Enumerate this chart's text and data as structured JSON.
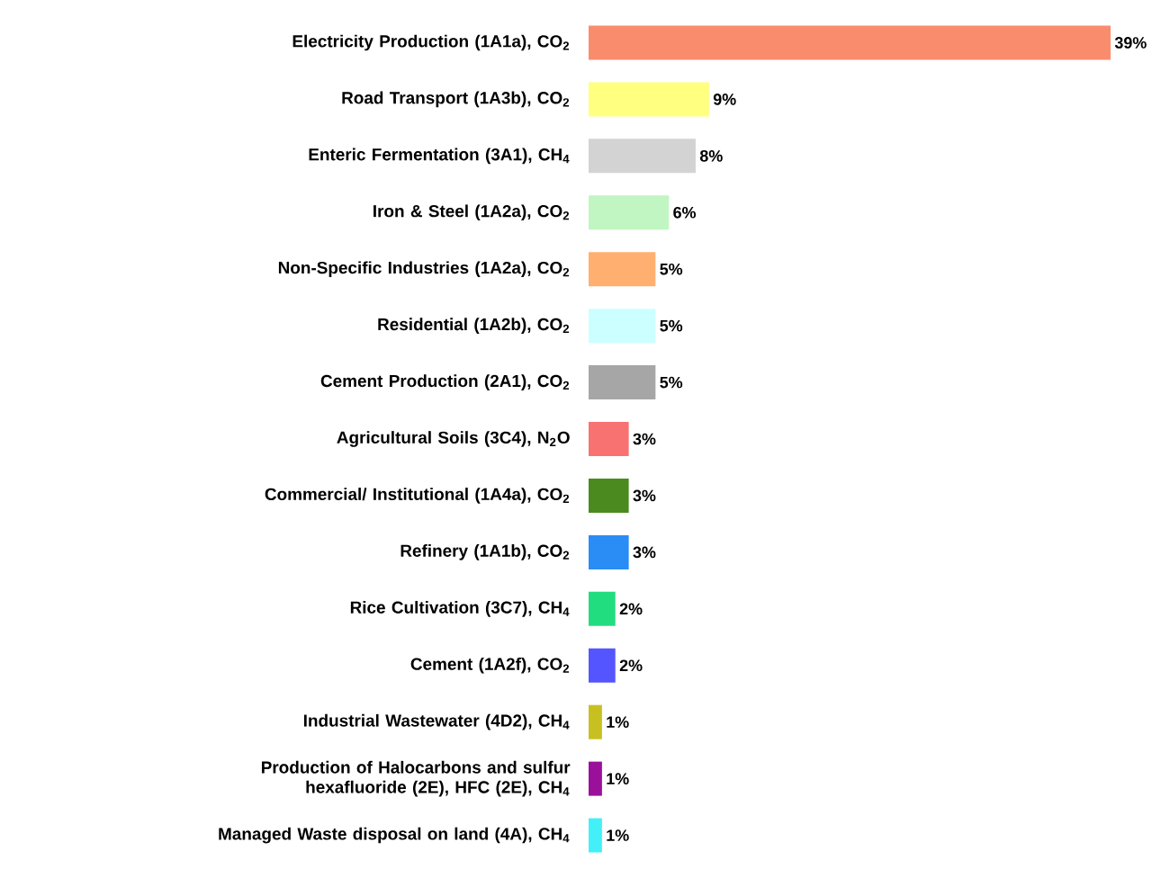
{
  "chart_data": {
    "type": "bar",
    "orientation": "horizontal",
    "categories": [
      "Electricity Production (1A1a), CO$_{2}$",
      "Road Transport (1A3b), CO$_{2}$",
      "Enteric  Fermentation (3A1), CH$_{4}$",
      "Iron & Steel (1A2a), CO$_{2}$",
      "Non-Specific Industries (1A2a), CO$_{2}$",
      "Residential (1A2b), CO$_{2}$",
      "Cement Production (2A1), CO$_{2}$",
      "Agricultural Soils (3C4), N$_{2}$O",
      "Commercial/ Institutional (1A4a), CO$_{2}$",
      "Refinery (1A1b), CO$_{2}$",
      "Rice Cultivation (3C7), CH$_{4}$",
      "Cement (1A2f), CO$_{2}$",
      "Industrial Wastewater (4D2), CH$_{4}$",
      "Production of Halocarbons and sulfur hexafluoride (2E), HFC (2E), CH$_{4}$",
      "Managed Waste disposal on land (4A), CH$_{4}$"
    ],
    "values": [
      39,
      9,
      8,
      6,
      5,
      5,
      5,
      3,
      3,
      3,
      2,
      2,
      1,
      1,
      1
    ],
    "value_labels": [
      "39%",
      "9%",
      "8%",
      "6%",
      "5%",
      "5%",
      "5%",
      "3%",
      "3%",
      "3%",
      "2%",
      "2%",
      "1%",
      "1%",
      "1%"
    ],
    "colors": [
      "#fa8c6e",
      "#ffff80",
      "#d3d3d3",
      "#c1f5c1",
      "#ffb070",
      "#ccffff",
      "#a6a6a6",
      "#f87272",
      "#4b8a1e",
      "#2a8cf5",
      "#22dd80",
      "#5555ff",
      "#c8c020",
      "#9b109b",
      "#44f0f8"
    ],
    "xlim": [
      0,
      39
    ]
  }
}
